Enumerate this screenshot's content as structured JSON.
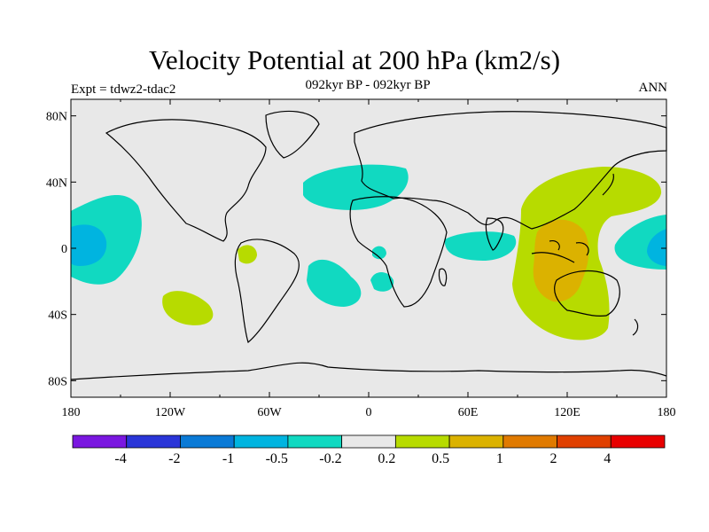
{
  "title": "Velocity Potential at 200 hPa (km2/s)",
  "subtitle": "092kyr BP - 092kyr BP",
  "left_label": "Expt = tdwz2-tdac2",
  "right_label": "ANN",
  "axes": {
    "lon_ticks": [
      "180",
      "120W",
      "60W",
      "0",
      "60E",
      "120E",
      "180"
    ],
    "lat_ticks": [
      "80N",
      "40N",
      "0",
      "40S",
      "80S"
    ]
  },
  "colorbar": {
    "colors": [
      "#7a17e0",
      "#2a35d8",
      "#0a7ad6",
      "#00b4e0",
      "#11d9c1",
      "#e8e8e8",
      "#b7db00",
      "#dbb200",
      "#e07a00",
      "#e04000",
      "#e80000"
    ],
    "labels": [
      "-4",
      "-2",
      "-1",
      "-0.5",
      "-0.2",
      "0.2",
      "0.5",
      "1",
      "2",
      "4"
    ]
  },
  "map": {
    "ocean_land_color": "#e8e8e8",
    "coastline_color": "#000000"
  }
}
